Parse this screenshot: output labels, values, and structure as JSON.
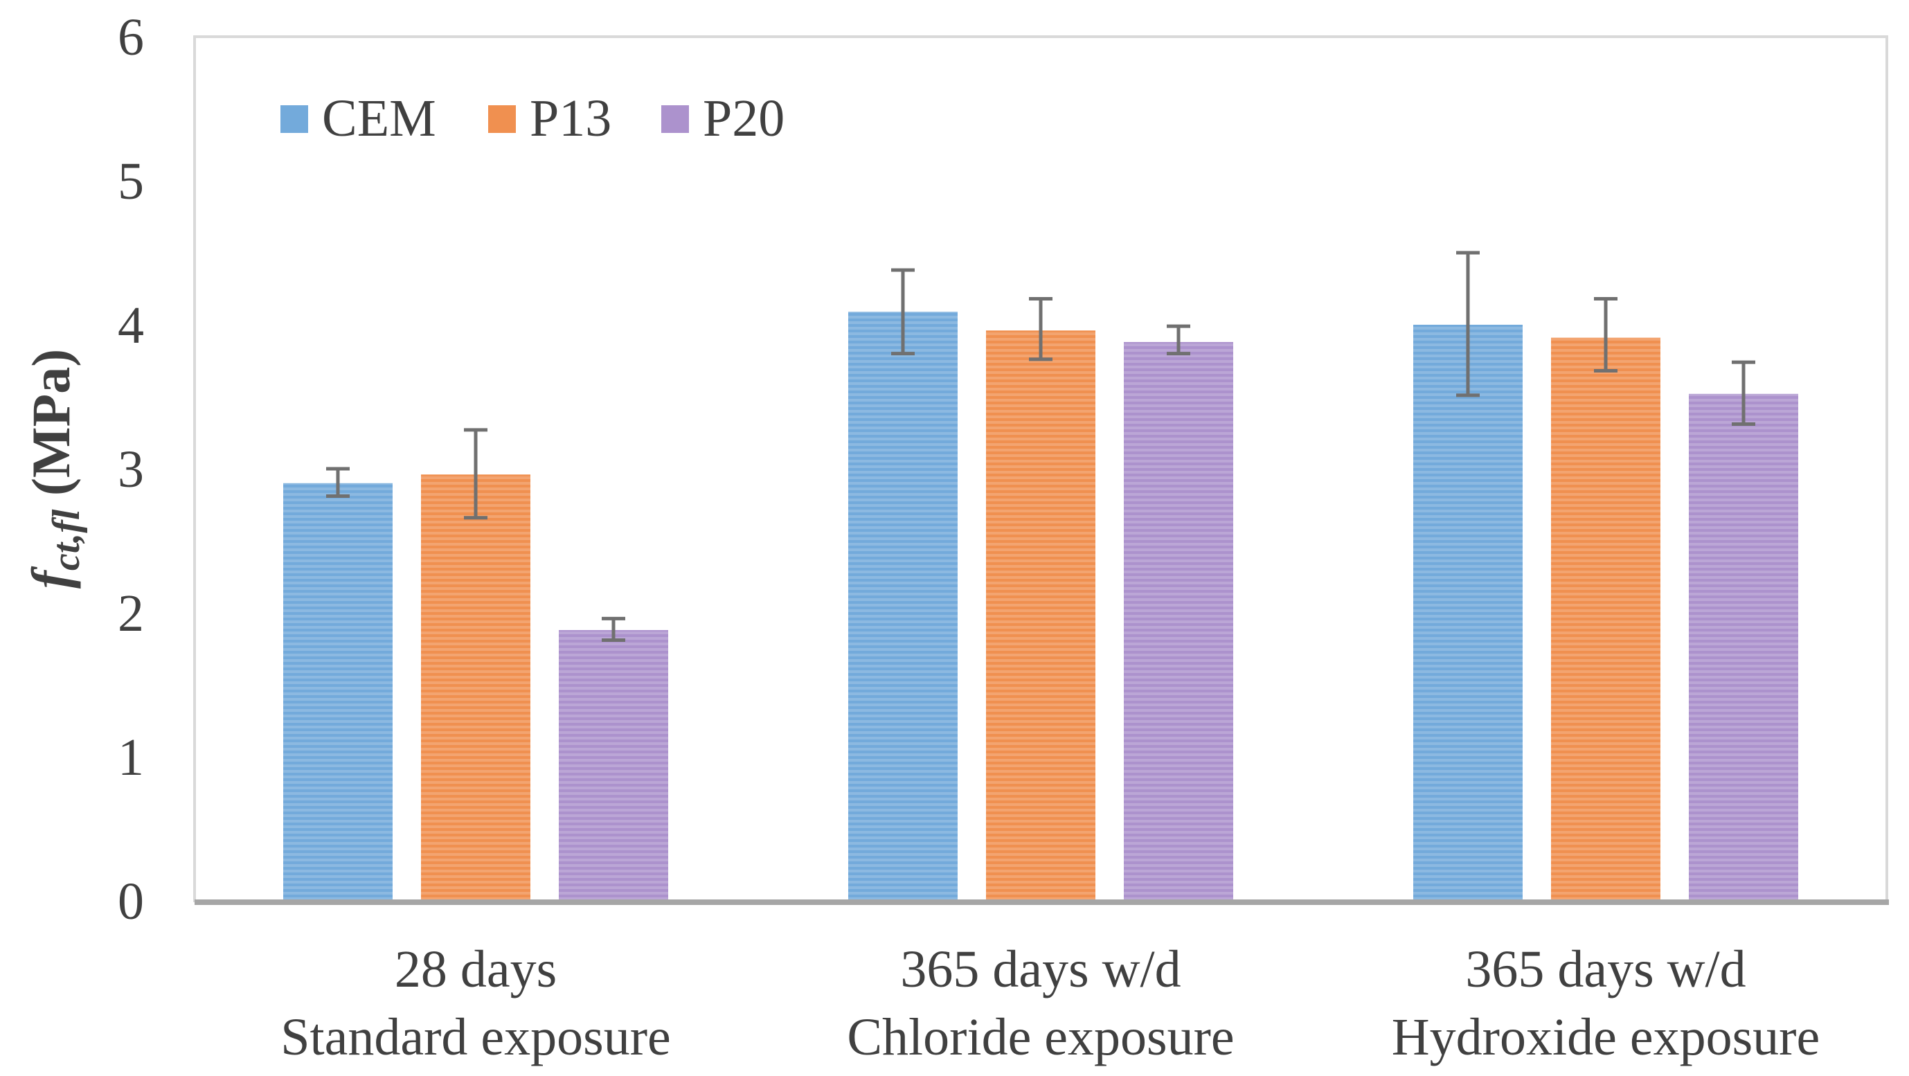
{
  "chart_data": {
    "type": "bar",
    "title": "",
    "xlabel": "",
    "ylabel_main": "f",
    "ylabel_sub": "ct,fl",
    "ylabel_unit": " (MPa)",
    "ylim": [
      0,
      6
    ],
    "yticks": [
      "0",
      "1",
      "2",
      "3",
      "4",
      "5",
      "6"
    ],
    "categories": [
      [
        "28 days",
        "Standard exposure"
      ],
      [
        "365 days w/d",
        "Chloride exposure"
      ],
      [
        "365 days w/d",
        "Hydroxide exposure"
      ]
    ],
    "legend_position": "top-left",
    "series": [
      {
        "name": "CEM",
        "color": "#5b9bd5",
        "values": [
          2.9,
          4.09,
          4.0
        ],
        "err_low": [
          2.81,
          3.8,
          3.51
        ],
        "err_high": [
          3.0,
          4.38,
          4.5
        ]
      },
      {
        "name": "P13",
        "color": "#ed7d31",
        "values": [
          2.96,
          3.96,
          3.91
        ],
        "err_low": [
          2.66,
          3.76,
          3.68
        ],
        "err_high": [
          3.27,
          4.18,
          4.18
        ]
      },
      {
        "name": "P20",
        "color": "#9e7fc4",
        "values": [
          1.88,
          3.88,
          3.52
        ],
        "err_low": [
          1.81,
          3.8,
          3.31
        ],
        "err_high": [
          1.96,
          3.99,
          3.74
        ]
      }
    ]
  }
}
